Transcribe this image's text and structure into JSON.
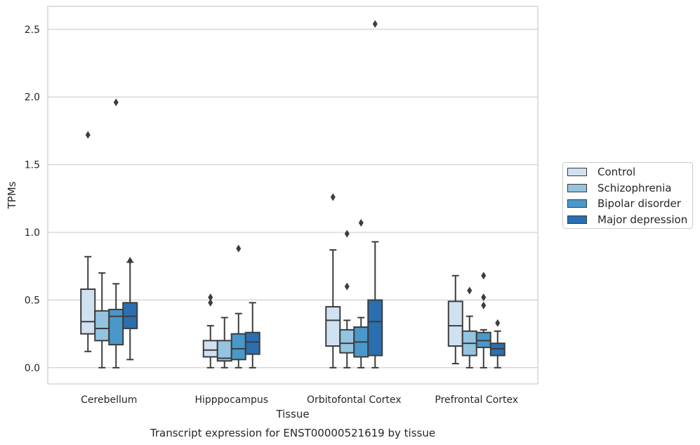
{
  "chart_data": {
    "type": "box",
    "title": "",
    "caption": "Transcript expression for ENST00000521619 by tissue",
    "xlabel": "Tissue",
    "ylabel": "TPMs",
    "ylim": [
      -0.12,
      2.67
    ],
    "yticks": [
      "0.0",
      "0.5",
      "1.0",
      "1.5",
      "2.0",
      "2.5"
    ],
    "grid": "horizontal",
    "legend_position": "right",
    "categories": [
      "Cerebellum",
      "Hipppocampus",
      "Orbitofontal Cortex",
      "Prefrontal Cortex"
    ],
    "series": [
      {
        "name": "Control",
        "color": "#d0e1f2",
        "boxes": [
          {
            "whislo": 0.12,
            "q1": 0.25,
            "med": 0.34,
            "q3": 0.58,
            "whishi": 0.82,
            "fliers": [
              1.72
            ]
          },
          {
            "whislo": 0.0,
            "q1": 0.08,
            "med": 0.13,
            "q3": 0.2,
            "whishi": 0.31,
            "fliers": [
              0.48,
              0.52
            ]
          },
          {
            "whislo": 0.0,
            "q1": 0.16,
            "med": 0.35,
            "q3": 0.45,
            "whishi": 0.87,
            "fliers": [
              1.26
            ]
          },
          {
            "whislo": 0.03,
            "q1": 0.16,
            "med": 0.31,
            "q3": 0.49,
            "whishi": 0.68,
            "fliers": []
          }
        ]
      },
      {
        "name": "Schizophrenia",
        "color": "#94c4df",
        "boxes": [
          {
            "whislo": 0.0,
            "q1": 0.2,
            "med": 0.29,
            "q3": 0.42,
            "whishi": 0.7,
            "fliers": []
          },
          {
            "whislo": 0.0,
            "q1": 0.05,
            "med": 0.07,
            "q3": 0.2,
            "whishi": 0.37,
            "fliers": []
          },
          {
            "whislo": 0.0,
            "q1": 0.11,
            "med": 0.18,
            "q3": 0.28,
            "whishi": 0.35,
            "fliers": [
              0.6,
              0.99
            ]
          },
          {
            "whislo": 0.0,
            "q1": 0.09,
            "med": 0.18,
            "q3": 0.27,
            "whishi": 0.38,
            "fliers": [
              0.57
            ]
          }
        ]
      },
      {
        "name": "Bipolar disorder",
        "color": "#4a98c9",
        "boxes": [
          {
            "whislo": 0.0,
            "q1": 0.17,
            "med": 0.38,
            "q3": 0.43,
            "whishi": 0.62,
            "fliers": [
              1.96
            ]
          },
          {
            "whislo": 0.0,
            "q1": 0.06,
            "med": 0.14,
            "q3": 0.25,
            "whishi": 0.4,
            "fliers": [
              0.88
            ]
          },
          {
            "whislo": 0.0,
            "q1": 0.08,
            "med": 0.19,
            "q3": 0.3,
            "whishi": 0.37,
            "fliers": [
              1.07
            ]
          },
          {
            "whislo": 0.0,
            "q1": 0.15,
            "med": 0.2,
            "q3": 0.26,
            "whishi": 0.28,
            "fliers": [
              0.46,
              0.52,
              0.68
            ]
          }
        ]
      },
      {
        "name": "Major depression",
        "color": "#2b6fb0",
        "boxes": [
          {
            "whislo": 0.06,
            "q1": 0.29,
            "med": 0.38,
            "q3": 0.48,
            "whishi": 0.78,
            "fliers": [
              0.79
            ]
          },
          {
            "whislo": 0.0,
            "q1": 0.1,
            "med": 0.19,
            "q3": 0.26,
            "whishi": 0.48,
            "fliers": []
          },
          {
            "whislo": 0.0,
            "q1": 0.09,
            "med": 0.34,
            "q3": 0.5,
            "whishi": 0.93,
            "fliers": [
              2.54
            ]
          },
          {
            "whislo": 0.0,
            "q1": 0.09,
            "med": 0.14,
            "q3": 0.18,
            "whishi": 0.27,
            "fliers": [
              0.33
            ]
          }
        ]
      }
    ]
  }
}
